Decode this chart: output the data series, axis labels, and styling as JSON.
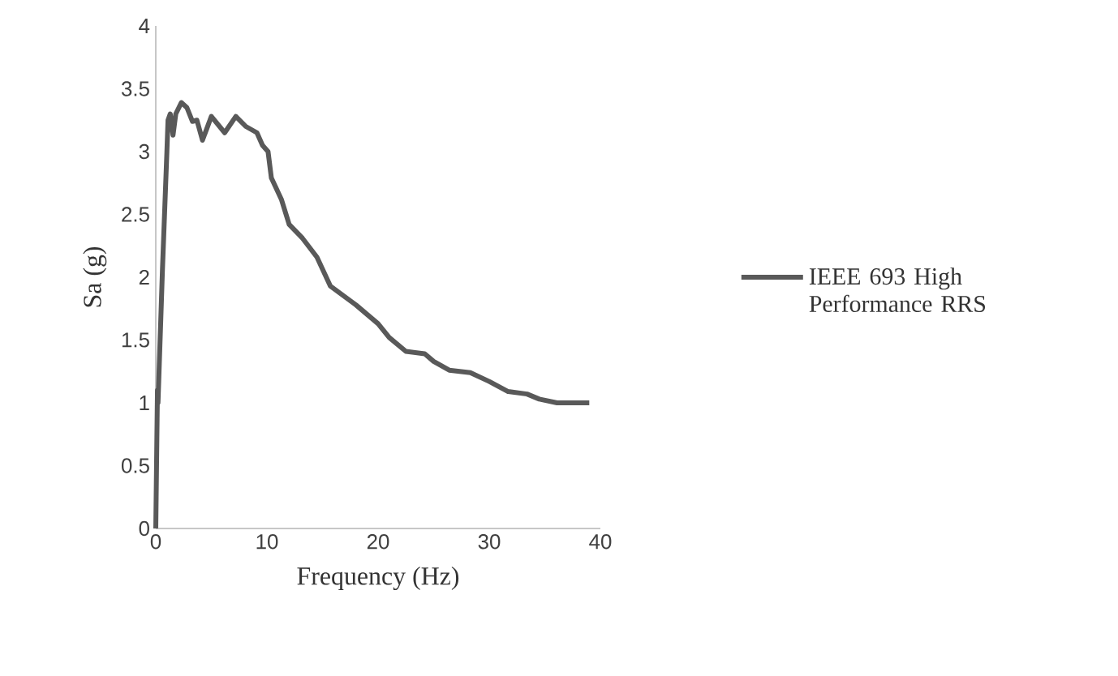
{
  "chart_data": {
    "type": "line",
    "xlabel": "Frequency (Hz)",
    "ylabel": "Sa (g)",
    "xlim": [
      0,
      40
    ],
    "ylim": [
      0,
      4
    ],
    "xticks": [
      0,
      10,
      20,
      30,
      40
    ],
    "yticks": [
      0,
      0.5,
      1,
      1.5,
      2,
      2.5,
      3,
      3.5,
      4
    ],
    "legend": "right",
    "series": [
      {
        "name": "IEEE 693 High Performance RRS",
        "color": "#595959",
        "x": [
          0,
          0.15,
          0.2,
          0.6,
          1.0,
          1.1,
          1.3,
          1.55,
          1.8,
          2.3,
          2.8,
          3.3,
          3.7,
          4.2,
          5.0,
          6.2,
          7.2,
          8.1,
          9.1,
          9.6,
          10.1,
          10.4,
          11.3,
          12.0,
          13.2,
          14.5,
          15.7,
          18.0,
          20.0,
          21.0,
          22.5,
          24.2,
          25.0,
          26.4,
          28.3,
          30.0,
          31.7,
          33.4,
          34.5,
          36.1,
          39.0
        ],
        "values": [
          0,
          1.1,
          1.0,
          2.06,
          3.0,
          3.25,
          3.3,
          3.13,
          3.3,
          3.39,
          3.35,
          3.24,
          3.25,
          3.09,
          3.28,
          3.15,
          3.28,
          3.2,
          3.15,
          3.05,
          3.0,
          2.79,
          2.62,
          2.42,
          2.31,
          2.16,
          1.93,
          1.78,
          1.63,
          1.52,
          1.41,
          1.39,
          1.33,
          1.26,
          1.24,
          1.17,
          1.09,
          1.07,
          1.03,
          1.0,
          1.0
        ]
      }
    ]
  }
}
